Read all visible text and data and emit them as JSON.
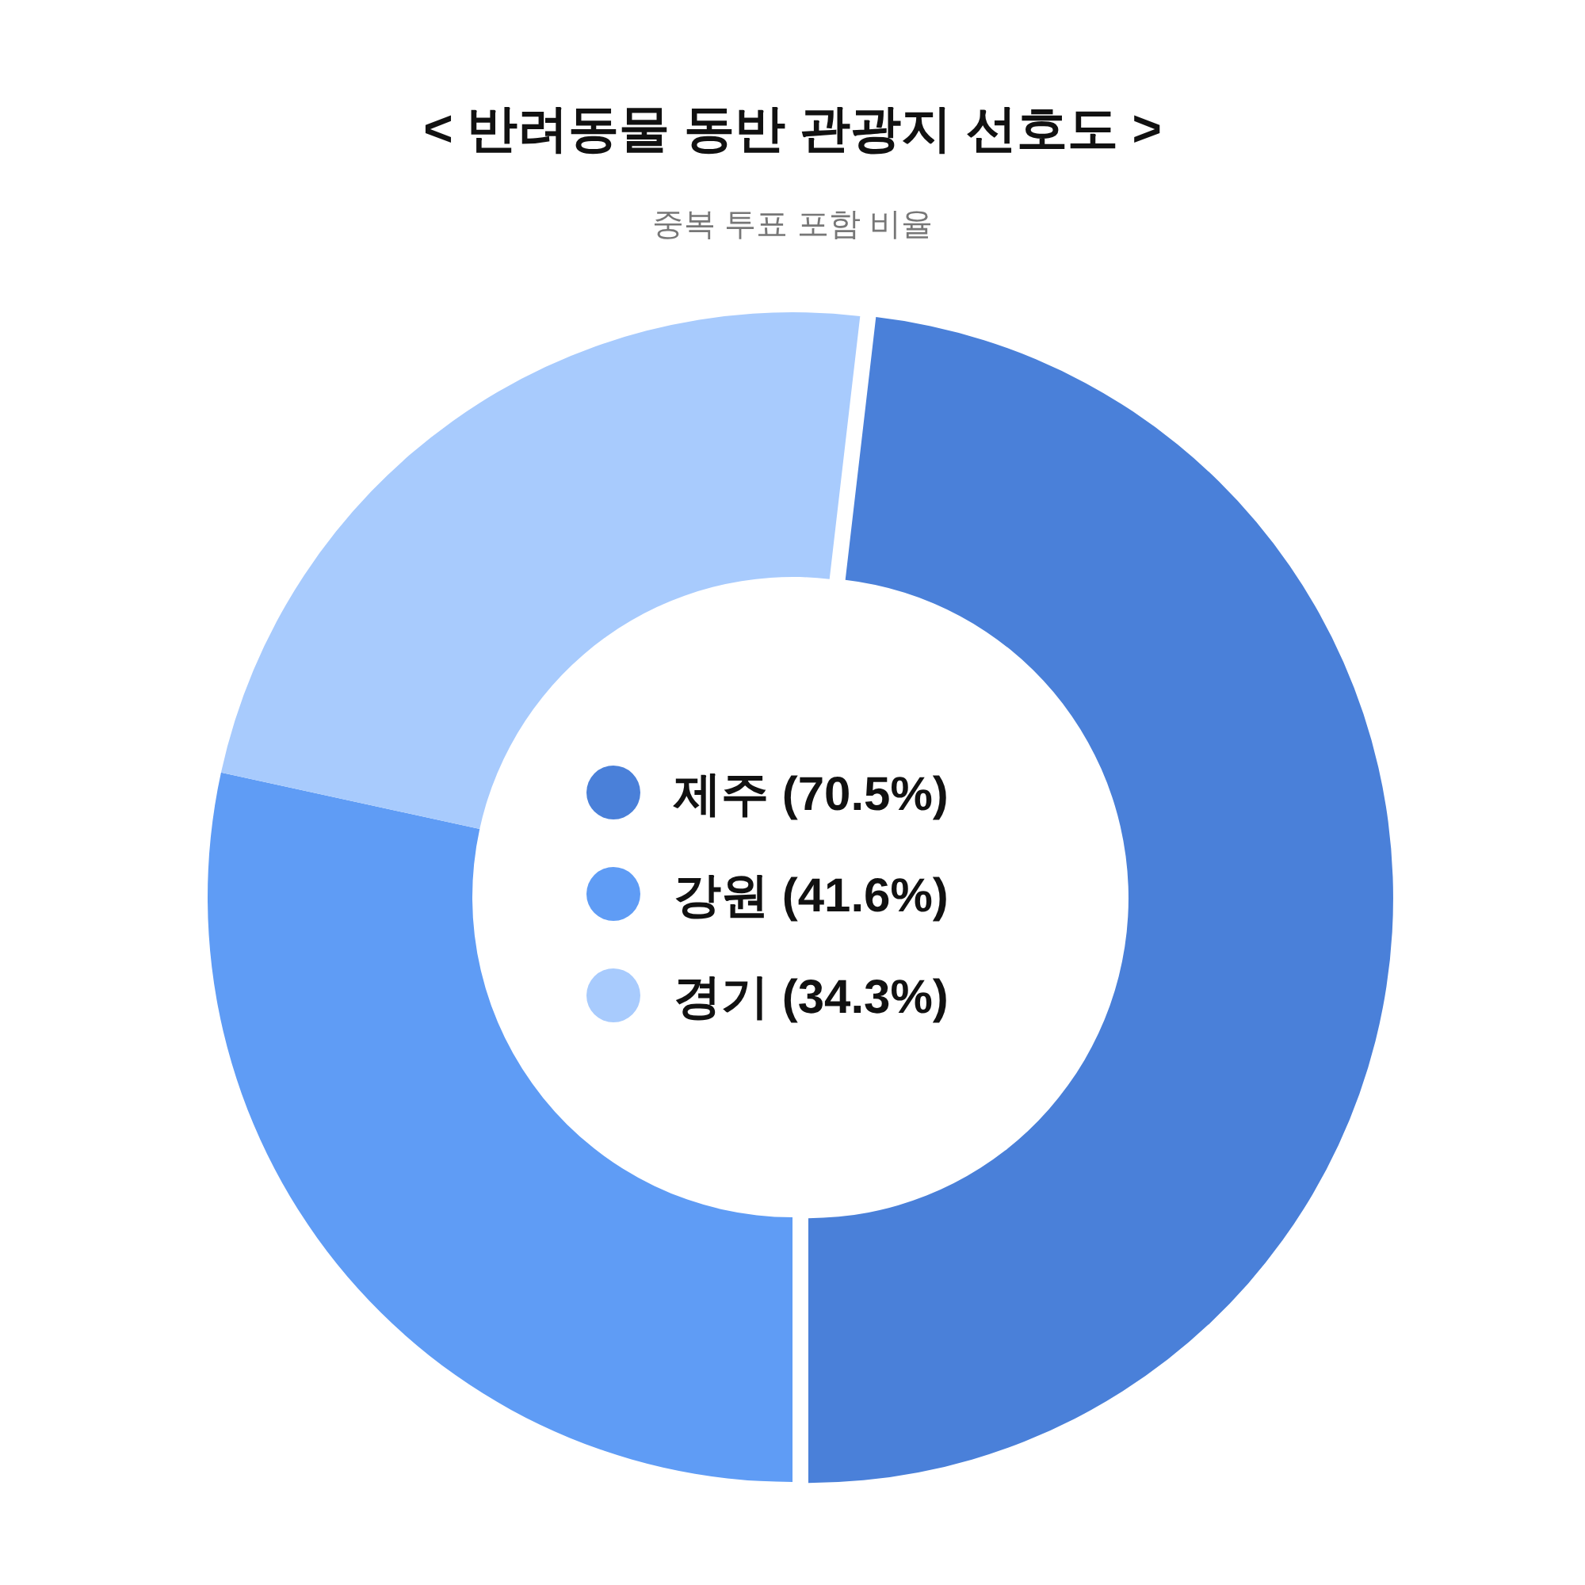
{
  "chart_data": {
    "type": "donut",
    "title": "< 반려동물 동반 관광지 선호도 >",
    "subtitle": "중복 투표 포함 비율",
    "categories": [
      "제주 (70.5%)",
      "강원 (41.6%)",
      "경기 (34.3%)"
    ],
    "values": [
      70.5,
      41.6,
      34.3
    ],
    "colors": [
      "#4a80d9",
      "#5f9cf5",
      "#a8cbfd"
    ],
    "legend": "center"
  }
}
